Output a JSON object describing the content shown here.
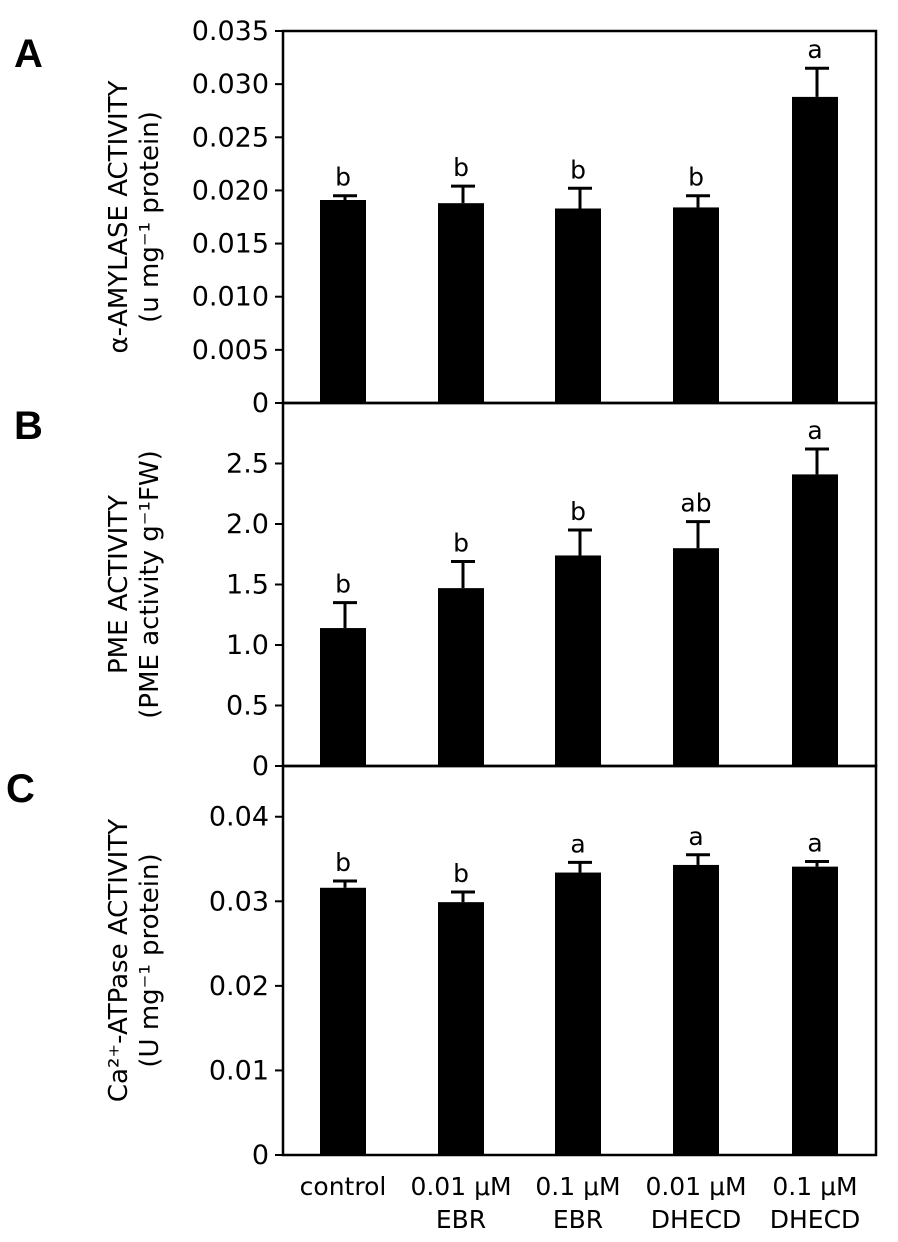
{
  "chart_data": [
    {
      "type": "bar",
      "panel_label": "A",
      "ylabel_line1": "α-AMYLASE ACTIVITY",
      "ylabel_line2": "(u mg⁻¹ protein)",
      "ylim": [
        0,
        0.035
      ],
      "yticks": [
        {
          "v": 0,
          "label": "0"
        },
        {
          "v": 0.005,
          "label": "0.005"
        },
        {
          "v": 0.01,
          "label": "0.010"
        },
        {
          "v": 0.015,
          "label": "0.015"
        },
        {
          "v": 0.02,
          "label": "0.020"
        },
        {
          "v": 0.025,
          "label": "0.025"
        },
        {
          "v": 0.03,
          "label": "0.030"
        },
        {
          "v": 0.035,
          "label": "0.035"
        }
      ],
      "values": [
        0.0191,
        0.0188,
        0.0183,
        0.0184,
        0.0288
      ],
      "errors": [
        0.0004,
        0.0016,
        0.0019,
        0.0011,
        0.0027
      ],
      "letters": [
        "b",
        "b",
        "b",
        "b",
        "a"
      ]
    },
    {
      "type": "bar",
      "panel_label": "B",
      "ylabel_line1": "PME ACTIVITY",
      "ylabel_line2": "(PME activity g⁻¹FW)",
      "ylim": [
        0,
        3.0
      ],
      "yticks": [
        {
          "v": 0,
          "label": "0"
        },
        {
          "v": 0.5,
          "label": "0.5"
        },
        {
          "v": 1.0,
          "label": "1.0"
        },
        {
          "v": 1.5,
          "label": "1.5"
        },
        {
          "v": 2.0,
          "label": "2.0"
        },
        {
          "v": 2.5,
          "label": "2.5"
        }
      ],
      "values": [
        1.14,
        1.47,
        1.74,
        1.8,
        2.41
      ],
      "errors": [
        0.21,
        0.22,
        0.21,
        0.22,
        0.21
      ],
      "letters": [
        "b",
        "b",
        "b",
        "ab",
        "a"
      ]
    },
    {
      "type": "bar",
      "panel_label": "C",
      "ylabel_line1": "Ca²⁺-ATPase ACTIVITY",
      "ylabel_line2": "(U mg⁻¹ protein)",
      "ylim": [
        0,
        0.046
      ],
      "yticks": [
        {
          "v": 0,
          "label": "0"
        },
        {
          "v": 0.01,
          "label": "0.01"
        },
        {
          "v": 0.02,
          "label": "0.02"
        },
        {
          "v": 0.03,
          "label": "0.03"
        },
        {
          "v": 0.04,
          "label": "0.04"
        }
      ],
      "values": [
        0.0316,
        0.0299,
        0.0334,
        0.0343,
        0.0341
      ],
      "errors": [
        0.0008,
        0.0012,
        0.0012,
        0.0012,
        0.0006
      ],
      "letters": [
        "b",
        "b",
        "a",
        "a",
        "a"
      ]
    }
  ],
  "categories": [
    {
      "line1": "control",
      "line2": ""
    },
    {
      "line1": "0.01 μM",
      "line2": "EBR"
    },
    {
      "line1": "0.1 μM",
      "line2": "EBR"
    },
    {
      "line1": "0.01 μM",
      "line2": "DHECD"
    },
    {
      "line1": "0.1 μM",
      "line2": "DHECD"
    }
  ],
  "colors": {
    "bar": "#000000",
    "axis": "#000000"
  }
}
